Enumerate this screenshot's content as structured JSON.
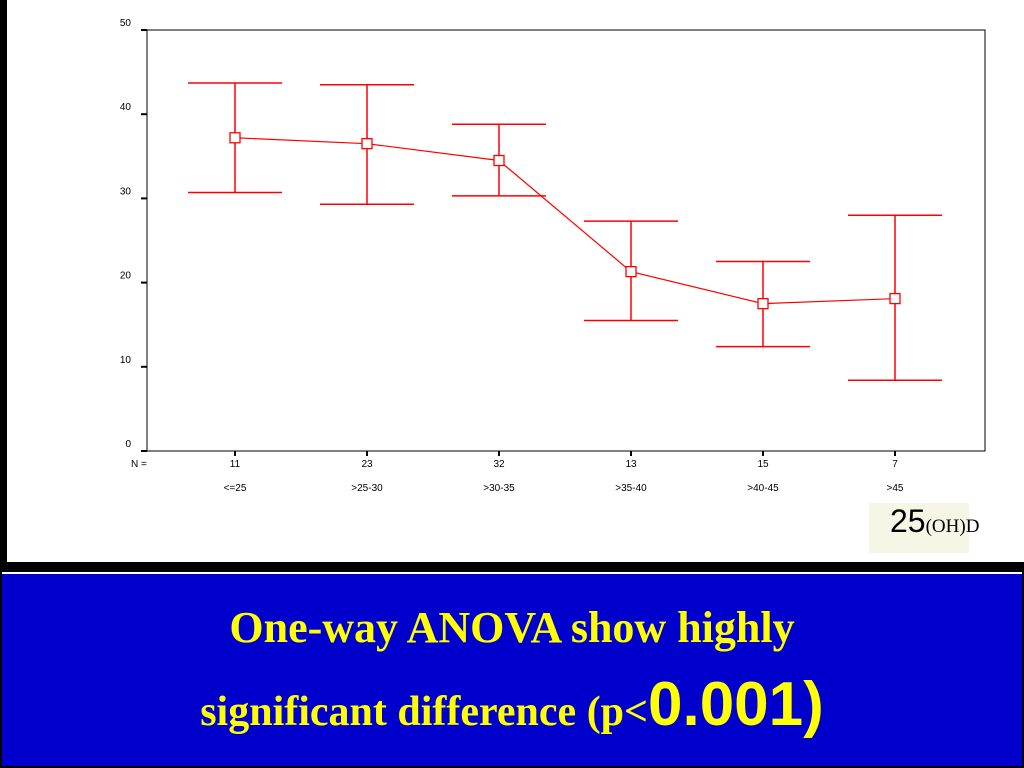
{
  "colors": {
    "series": "#ff0000",
    "banner_bg": "#0000cc",
    "banner_text": "#ffff00",
    "badge_bg": "#f6f6e6"
  },
  "chart_data": {
    "type": "line",
    "subtype": "error-bar",
    "categories": [
      "<=25",
      ">25-30",
      ">30-35",
      ">35-40",
      ">40-45",
      ">45"
    ],
    "n_label": "N =",
    "n_values": [
      "11",
      "23",
      "32",
      "13",
      "15",
      "7"
    ],
    "series": [
      {
        "marker": "open-square",
        "mean": [
          37.2,
          36.5,
          34.5,
          21.3,
          17.5,
          18.1
        ],
        "lower": [
          30.7,
          29.3,
          30.3,
          15.5,
          12.4,
          8.4
        ],
        "upper": [
          43.7,
          43.5,
          38.8,
          27.3,
          22.5,
          28.0
        ]
      }
    ],
    "yticks": [
      "0",
      "10",
      "20",
      "30",
      "40",
      "50"
    ],
    "ylim": [
      0,
      50
    ],
    "grid": false,
    "caption_num": "25",
    "caption_sub": "(OH)D"
  },
  "banner": {
    "line1": "One-way ANOVA show highly",
    "line2_prefix": "significant difference  (p<",
    "line2_value": "0.001)"
  }
}
